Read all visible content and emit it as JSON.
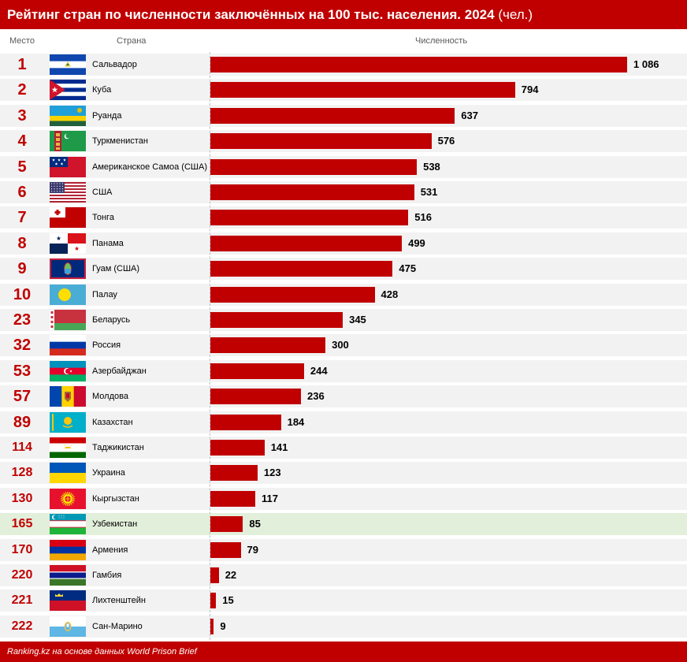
{
  "header": {
    "title": "Рейтинг стран по численности заключённых на 100 тыс. населения. 2024",
    "unit": "(чел.)"
  },
  "columns": {
    "rank": "Место",
    "country": "Страна",
    "value": "Численность"
  },
  "footer": {
    "source": "Ranking.kz на основе данных World Prison Brief"
  },
  "colors": {
    "accent": "#c00000",
    "row_bg": "#f2f2f2",
    "highlight_bg": "#e2efda"
  },
  "chart_data": {
    "type": "bar",
    "orientation": "horizontal",
    "title": "Рейтинг стран по численности заключённых на 100 тыс. населения. 2024",
    "unit": "(чел.)",
    "xlabel": "Численность",
    "highlight": "Узбекистан",
    "rows": [
      {
        "rank": "1",
        "country": "Сальвадор",
        "value": 1086,
        "label": "1 086",
        "flag": "el-salvador-flag"
      },
      {
        "rank": "2",
        "country": "Куба",
        "value": 794,
        "label": "794",
        "flag": "cuba-flag"
      },
      {
        "rank": "3",
        "country": "Руанда",
        "value": 637,
        "label": "637",
        "flag": "rwanda-flag"
      },
      {
        "rank": "4",
        "country": "Туркменистан",
        "value": 576,
        "label": "576",
        "flag": "turkmenistan-flag"
      },
      {
        "rank": "5",
        "country": "Американское Самоа (США)",
        "value": 538,
        "label": "538",
        "flag": "american-samoa-flag"
      },
      {
        "rank": "6",
        "country": "США",
        "value": 531,
        "label": "531",
        "flag": "usa-flag"
      },
      {
        "rank": "7",
        "country": "Тонга",
        "value": 516,
        "label": "516",
        "flag": "tonga-flag"
      },
      {
        "rank": "8",
        "country": "Панама",
        "value": 499,
        "label": "499",
        "flag": "panama-flag"
      },
      {
        "rank": "9",
        "country": "Гуам (США)",
        "value": 475,
        "label": "475",
        "flag": "guam-flag"
      },
      {
        "rank": "10",
        "country": "Палау",
        "value": 428,
        "label": "428",
        "flag": "palau-flag"
      },
      {
        "rank": "23",
        "country": "Беларусь",
        "value": 345,
        "label": "345",
        "flag": "belarus-flag"
      },
      {
        "rank": "32",
        "country": "Россия",
        "value": 300,
        "label": "300",
        "flag": "russia-flag"
      },
      {
        "rank": "53",
        "country": "Азербайджан",
        "value": 244,
        "label": "244",
        "flag": "azerbaijan-flag"
      },
      {
        "rank": "57",
        "country": "Молдова",
        "value": 236,
        "label": "236",
        "flag": "moldova-flag"
      },
      {
        "rank": "89",
        "country": "Казахстан",
        "value": 184,
        "label": "184",
        "flag": "kazakhstan-flag"
      },
      {
        "rank": "114",
        "country": "Таджикистан",
        "value": 141,
        "label": "141",
        "flag": "tajikistan-flag"
      },
      {
        "rank": "128",
        "country": "Украина",
        "value": 123,
        "label": "123",
        "flag": "ukraine-flag"
      },
      {
        "rank": "130",
        "country": "Кыргызстан",
        "value": 117,
        "label": "117",
        "flag": "kyrgyzstan-flag"
      },
      {
        "rank": "165",
        "country": "Узбекистан",
        "value": 85,
        "label": "85",
        "flag": "uzbekistan-flag"
      },
      {
        "rank": "170",
        "country": "Армения",
        "value": 79,
        "label": "79",
        "flag": "armenia-flag"
      },
      {
        "rank": "220",
        "country": "Гамбия",
        "value": 22,
        "label": "22",
        "flag": "gambia-flag"
      },
      {
        "rank": "221",
        "country": "Лихтенштейн",
        "value": 15,
        "label": "15",
        "flag": "liechtenstein-flag"
      },
      {
        "rank": "222",
        "country": "Сан-Марино",
        "value": 9,
        "label": "9",
        "flag": "san-marino-flag"
      }
    ]
  }
}
